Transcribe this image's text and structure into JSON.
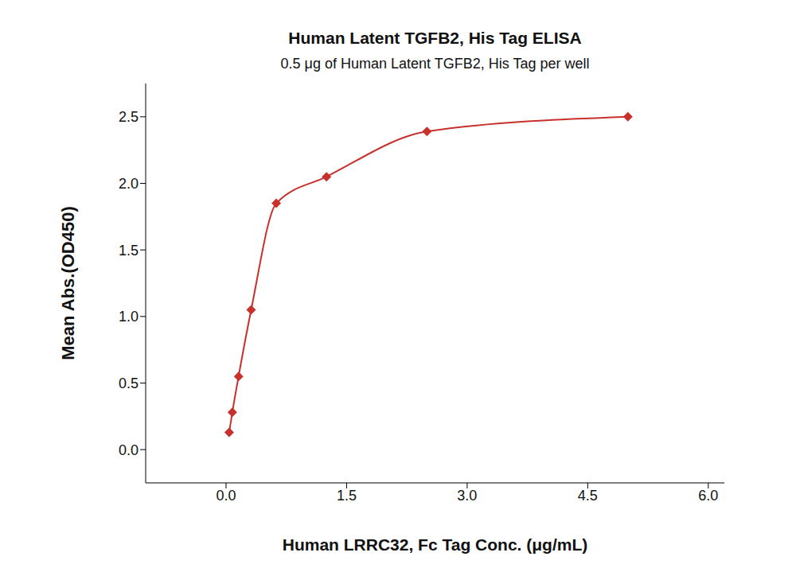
{
  "chart_data": {
    "type": "line",
    "title": "Human Latent TGFB2, His Tag ELISA",
    "subtitle": "0.5 μg of Human Latent TGFB2, His Tag per well",
    "x_label": "Human LRRC32, Fc Tag Conc. (μg/mL)",
    "y_label": "Mean Abs.(OD450)",
    "x": [
      0.039,
      0.078,
      0.156,
      0.3125,
      0.625,
      1.25,
      2.5,
      5
    ],
    "values": [
      0.13,
      0.28,
      0.55,
      1.05,
      1.85,
      2.05,
      2.39,
      2.5
    ],
    "color": "#c8302c",
    "marker": "diamond",
    "line_style": "solid",
    "xlim": [
      -1,
      6.2
    ],
    "ylim": [
      -0.25,
      2.75
    ],
    "xticks": [
      {
        "value": 0,
        "label": "0.0"
      },
      {
        "value": 1.5,
        "label": "1.5"
      },
      {
        "value": 3,
        "label": "3.0"
      },
      {
        "value": 4.5,
        "label": "4.5"
      },
      {
        "value": 6,
        "label": "6.0"
      }
    ],
    "yticks": [
      {
        "value": 0,
        "label": "0.0"
      },
      {
        "value": 0.5,
        "label": "0.5"
      },
      {
        "value": 1,
        "label": "1.0"
      },
      {
        "value": 1.5,
        "label": "1.5"
      },
      {
        "value": 2,
        "label": "2.0"
      },
      {
        "value": 2.5,
        "label": "2.5"
      }
    ],
    "grid": false
  }
}
